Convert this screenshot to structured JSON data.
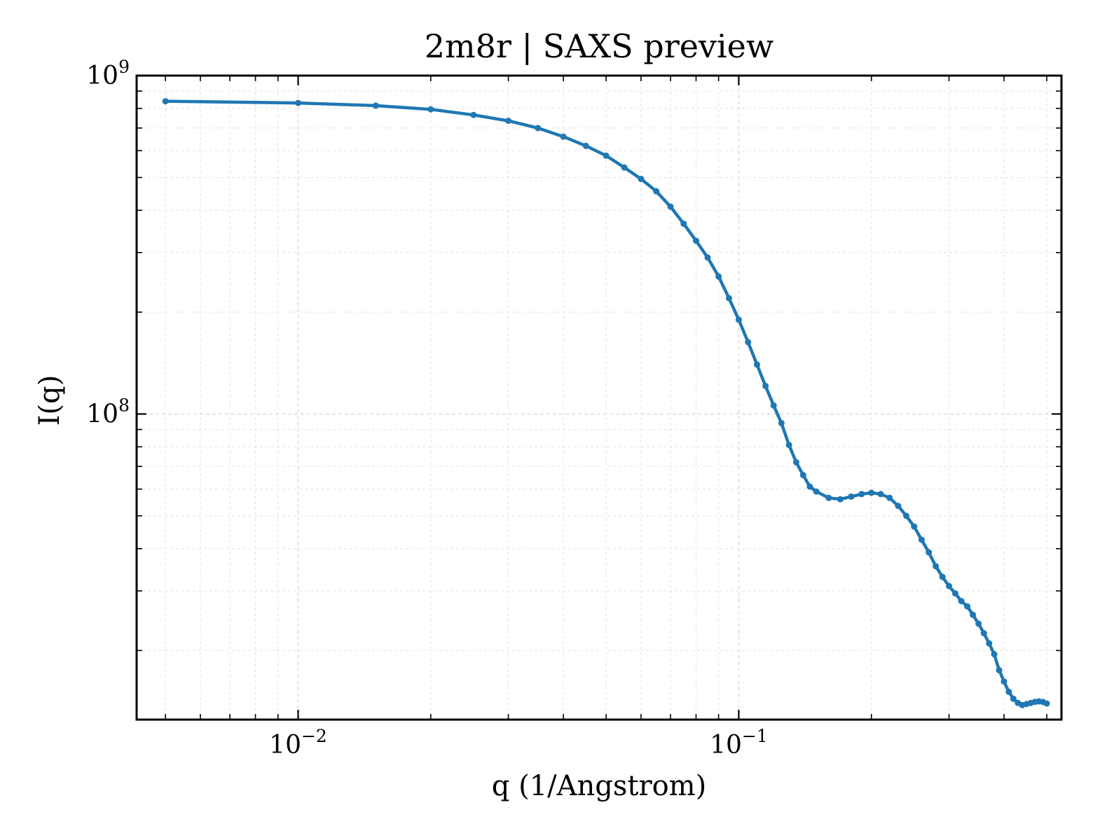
{
  "chart_data": {
    "type": "line",
    "title": "2m8r | SAXS preview",
    "xlabel": "q (1/Angstrom)",
    "ylabel": "I(q)",
    "xscale": "log",
    "yscale": "log",
    "xlim": [
      0.0043,
      0.54
    ],
    "ylim": [
      12500000,
      1000000000
    ],
    "x_ticks": [
      {
        "value": 0.01,
        "base": "10",
        "exp": "−2"
      },
      {
        "value": 0.1,
        "base": "10",
        "exp": "−1"
      }
    ],
    "y_ticks": [
      {
        "value": 100000000,
        "base": "10",
        "exp": "8"
      },
      {
        "value": 1000000000,
        "base": "10",
        "exp": "9"
      }
    ],
    "grid": true,
    "color": "#1f77b4",
    "series": [
      {
        "x": [
          0.005,
          0.01,
          0.015,
          0.02,
          0.025,
          0.03,
          0.035,
          0.04,
          0.045,
          0.05,
          0.055,
          0.06,
          0.065,
          0.07,
          0.075,
          0.08,
          0.085,
          0.09,
          0.095,
          0.1,
          0.105,
          0.11,
          0.115,
          0.12,
          0.125,
          0.13,
          0.135,
          0.14,
          0.145,
          0.15,
          0.16,
          0.17,
          0.18,
          0.19,
          0.2,
          0.21,
          0.22,
          0.23,
          0.24,
          0.25,
          0.26,
          0.27,
          0.28,
          0.29,
          0.3,
          0.31,
          0.32,
          0.33,
          0.34,
          0.35,
          0.36,
          0.37,
          0.38,
          0.39,
          0.4,
          0.41,
          0.42,
          0.43,
          0.44,
          0.45,
          0.46,
          0.47,
          0.48,
          0.49,
          0.5
        ],
        "y": [
          840000000,
          830000000,
          815000000,
          795000000,
          765000000,
          735000000,
          700000000,
          660000000,
          620000000,
          580000000,
          535000000,
          495000000,
          455000000,
          410000000,
          365000000,
          325000000,
          290000000,
          255000000,
          220000000,
          190000000,
          163000000,
          140000000,
          121000000,
          106000000,
          94000000,
          81000000,
          72000000,
          66000000,
          61000000,
          59000000,
          56500000,
          56000000,
          57000000,
          58000000,
          58500000,
          58000000,
          56500000,
          53500000,
          50000000,
          46500000,
          42500000,
          39000000,
          35500000,
          33000000,
          31000000,
          29500000,
          28000000,
          27000000,
          25500000,
          24000000,
          22500000,
          21000000,
          19500000,
          17500000,
          16200000,
          15100000,
          14400000,
          14000000,
          13800000,
          13900000,
          14000000,
          14100000,
          14150000,
          14100000,
          13950000
        ]
      }
    ]
  }
}
